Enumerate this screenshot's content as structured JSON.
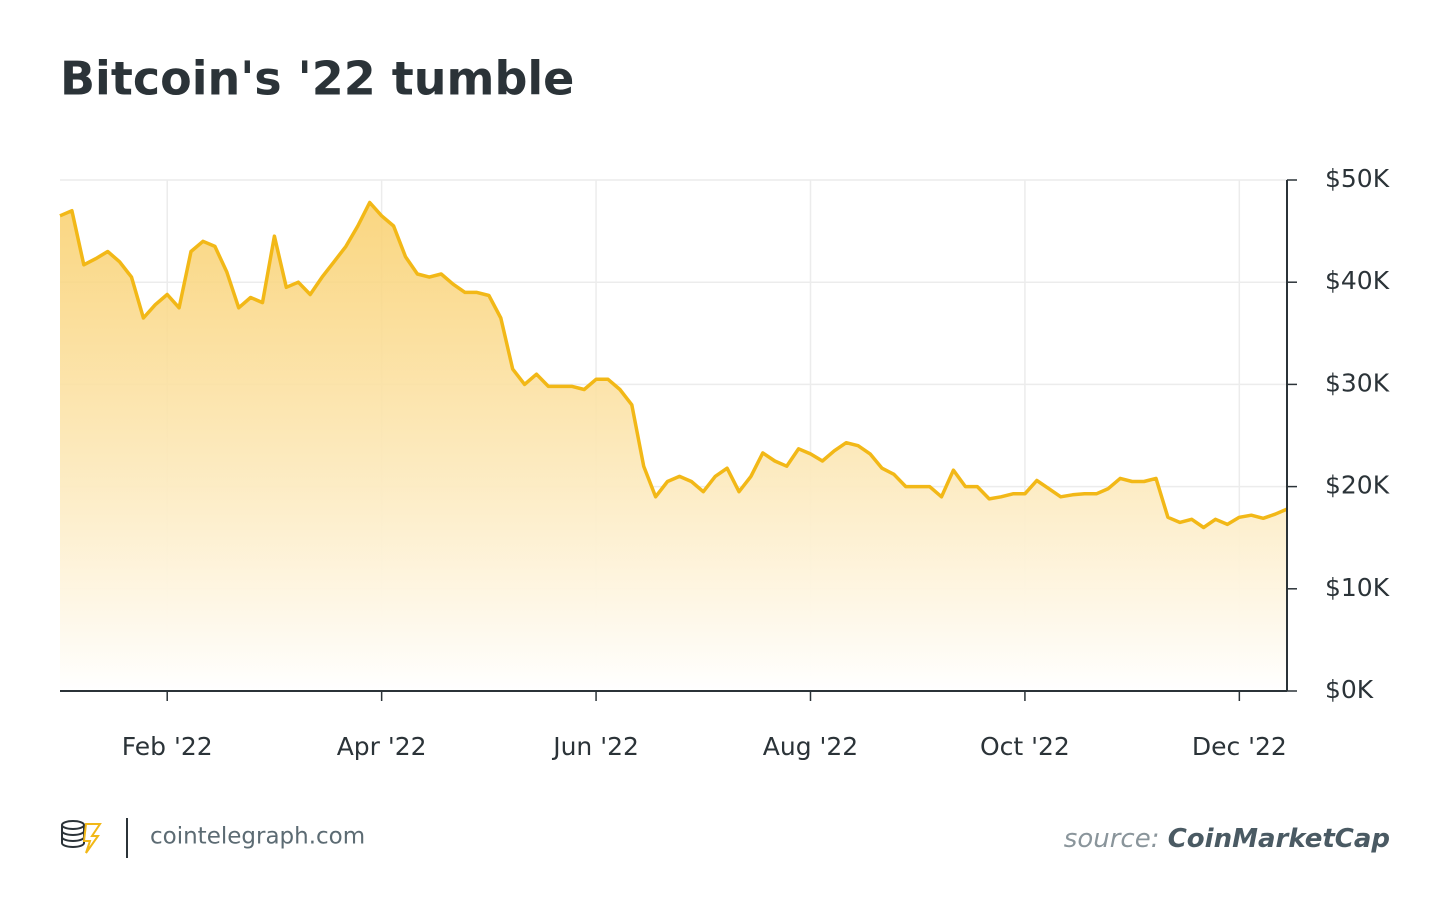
{
  "chart_data": {
    "type": "area",
    "title": "Bitcoin's '22 tumble",
    "categories": [
      null,
      null,
      null,
      null,
      null,
      null,
      null,
      null,
      null,
      "Feb '22",
      null,
      null,
      null,
      null,
      null,
      null,
      null,
      null,
      null,
      null,
      null,
      null,
      null,
      null,
      null,
      null,
      null,
      "Apr '22",
      null,
      null,
      null,
      null,
      null,
      null,
      null,
      null,
      null,
      null,
      null,
      null,
      null,
      null,
      null,
      null,
      null,
      "Jun '22",
      null,
      null,
      null,
      null,
      null,
      null,
      null,
      null,
      null,
      null,
      null,
      null,
      null,
      null,
      null,
      null,
      null,
      "Aug '22",
      null,
      null,
      null,
      null,
      null,
      null,
      null,
      null,
      null,
      null,
      null,
      null,
      null,
      null,
      null,
      null,
      null,
      "Oct '22",
      null,
      null,
      null,
      null,
      null,
      null,
      null,
      null,
      null,
      null,
      null,
      null,
      null,
      null,
      null,
      null,
      null,
      "Dec '22",
      null,
      null,
      null,
      null
    ],
    "values": [
      46500,
      47000,
      41700,
      42300,
      43000,
      42000,
      40500,
      36500,
      37800,
      38800,
      37500,
      43000,
      44000,
      43500,
      41000,
      37500,
      38500,
      38000,
      44500,
      39500,
      40000,
      38800,
      40500,
      42000,
      43500,
      45500,
      47800,
      46500,
      45500,
      42500,
      40800,
      40500,
      40800,
      39800,
      39000,
      39000,
      38700,
      36500,
      31500,
      30000,
      31000,
      29800,
      29800,
      29800,
      29500,
      30500,
      30500,
      29500,
      28000,
      22000,
      19000,
      20500,
      21000,
      20500,
      19500,
      21000,
      21800,
      19500,
      21000,
      23300,
      22500,
      22000,
      23700,
      23200,
      22500,
      23500,
      24300,
      24000,
      23200,
      21800,
      21200,
      20000,
      20000,
      20000,
      19000,
      21600,
      20000,
      20000,
      18800,
      19000,
      19300,
      19300,
      20600,
      19800,
      19000,
      19200,
      19300,
      19300,
      19800,
      20800,
      20500,
      20500,
      20800,
      17000,
      16500,
      16800,
      16000,
      16800,
      16300,
      17000,
      17200,
      16900,
      17300,
      17800
    ],
    "color": "#f2b817",
    "fill_color": "#f9cf6b",
    "ylim": [
      0,
      50000
    ],
    "yticks": [
      {
        "value": 0,
        "label": "$0K"
      },
      {
        "value": 10000,
        "label": "$10K"
      },
      {
        "value": 20000,
        "label": "$20K"
      },
      {
        "value": 30000,
        "label": "$30K"
      },
      {
        "value": 40000,
        "label": "$40K"
      },
      {
        "value": 50000,
        "label": "$50K"
      }
    ],
    "y_axis_side": "right",
    "grid": true,
    "brand": "cointelegraph.com",
    "source_label": "source:",
    "source": "CoinMarketCap"
  }
}
